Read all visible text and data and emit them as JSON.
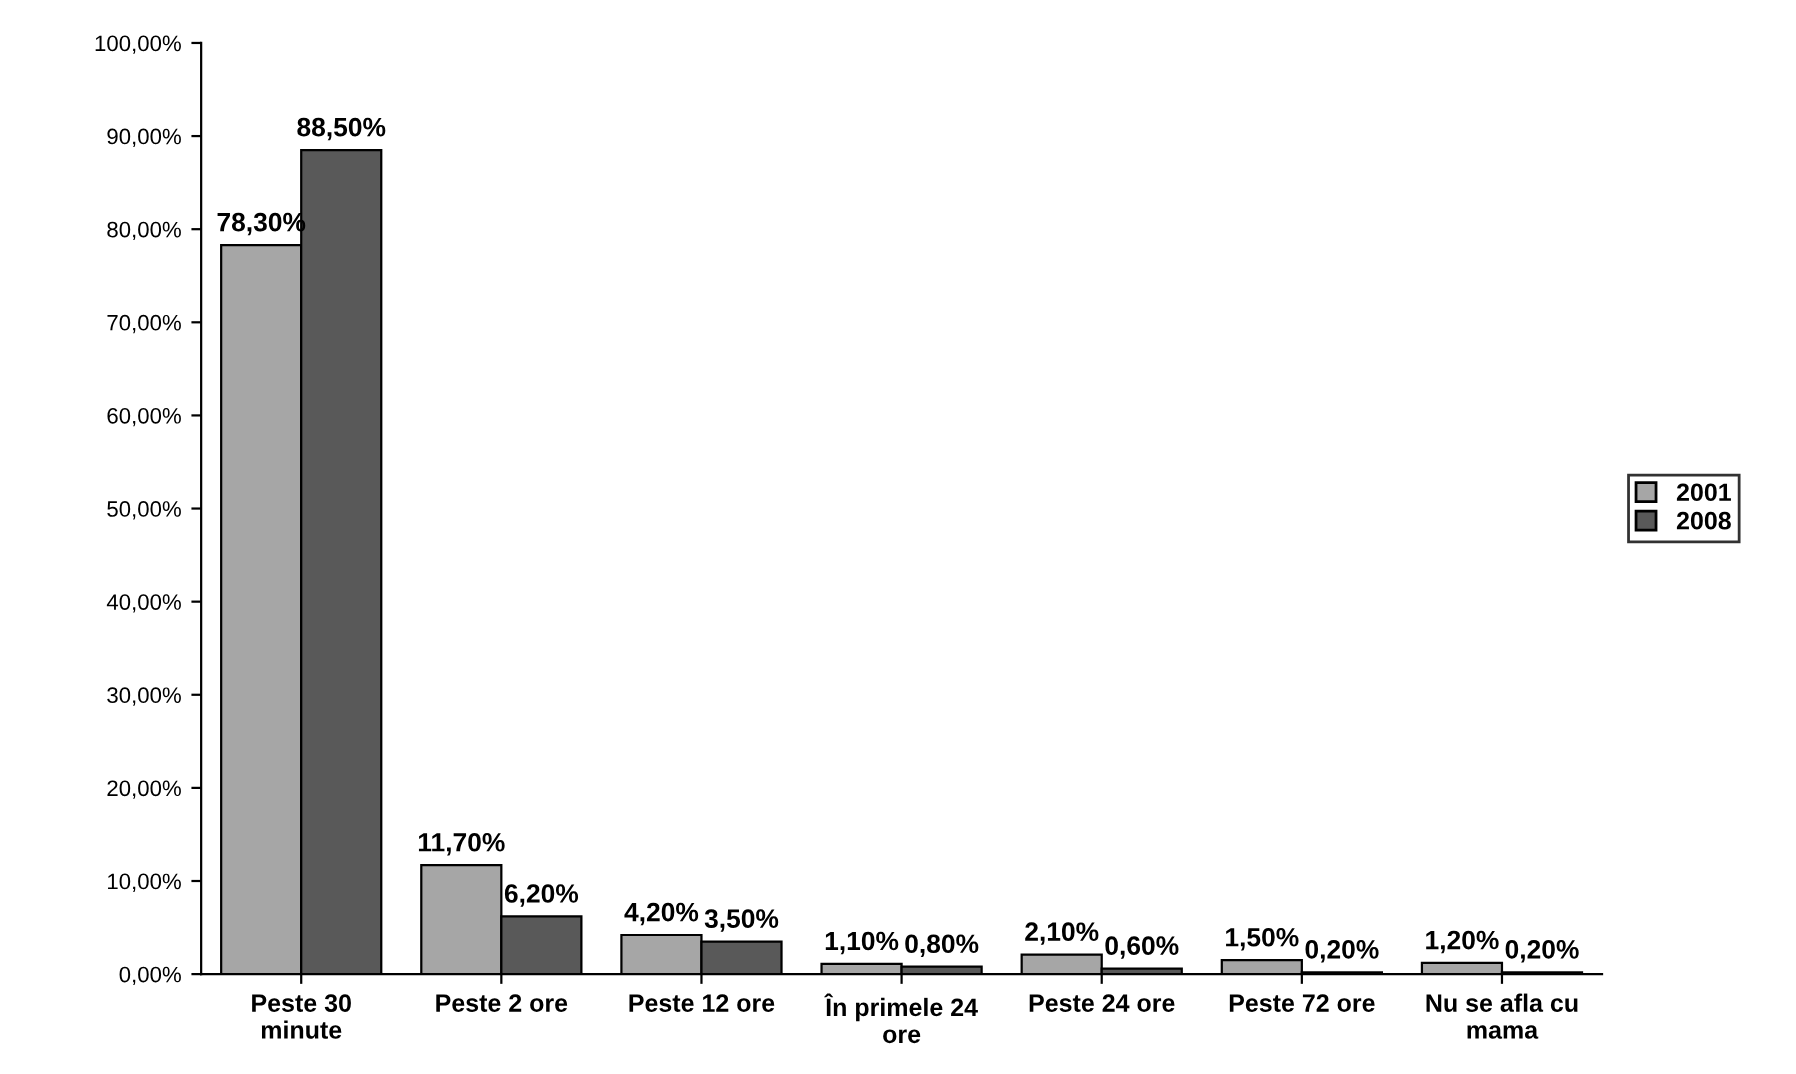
{
  "chart_data": {
    "type": "bar",
    "categories": [
      "Peste 30\nminute",
      "Peste 2 ore",
      "Peste 12 ore",
      "În primele 24\nore",
      "Peste 24 ore",
      "Peste 72 ore",
      "Nu se afla cu\nmama"
    ],
    "series": [
      {
        "name": "2001",
        "color": "#a6a6a6",
        "values": [
          78.3,
          11.7,
          4.2,
          1.1,
          2.1,
          1.5,
          1.2
        ],
        "value_labels": [
          "78,30%",
          "11,70%",
          "4,20%",
          "1,10%",
          "2,10%",
          "1,50%",
          "1,20%"
        ]
      },
      {
        "name": "2008",
        "color": "#595959",
        "values": [
          88.5,
          6.2,
          3.5,
          0.8,
          0.6,
          0.2,
          0.2
        ],
        "value_labels": [
          "88,50%",
          "6,20%",
          "3,50%",
          "0,80%",
          "0,60%",
          "0,20%",
          "0,20%"
        ]
      }
    ],
    "ylim": [
      0,
      100
    ],
    "yticks": [
      {
        "value": 0,
        "label": "0,00%"
      },
      {
        "value": 10,
        "label": "10,00%"
      },
      {
        "value": 20,
        "label": "20,00%"
      },
      {
        "value": 30,
        "label": "30,00%"
      },
      {
        "value": 40,
        "label": "40,00%"
      },
      {
        "value": 50,
        "label": "50,00%"
      },
      {
        "value": 60,
        "label": "60,00%"
      },
      {
        "value": 70,
        "label": "70,00%"
      },
      {
        "value": 80,
        "label": "80,00%"
      },
      {
        "value": 90,
        "label": "90,00%"
      },
      {
        "value": 100,
        "label": "100,00%"
      }
    ],
    "grid": false,
    "legend": "right"
  }
}
